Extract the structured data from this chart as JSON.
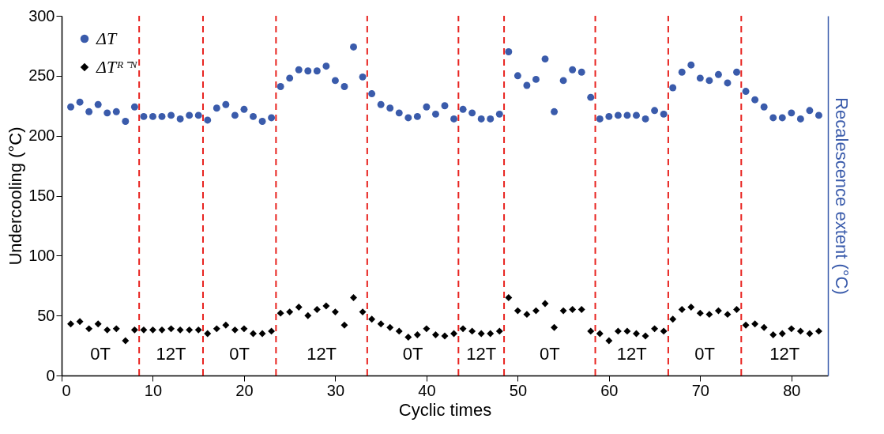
{
  "chart_data": {
    "type": "scatter",
    "xlabel": "Cyclic times",
    "ylabel": "Undercooling (°C)",
    "y2label": "Recalescence extent (°C)",
    "x": [
      1,
      2,
      3,
      4,
      5,
      6,
      7,
      8,
      9,
      10,
      11,
      12,
      13,
      14,
      15,
      16,
      17,
      18,
      19,
      20,
      21,
      22,
      23,
      24,
      25,
      26,
      27,
      28,
      29,
      30,
      31,
      32,
      33,
      34,
      35,
      36,
      37,
      38,
      39,
      40,
      41,
      42,
      43,
      44,
      45,
      46,
      47,
      48,
      49,
      50,
      51,
      52,
      53,
      54,
      55,
      56,
      57,
      58,
      59,
      60,
      61,
      62,
      63,
      64,
      65,
      66,
      67,
      68,
      69,
      70,
      71,
      72,
      73,
      74,
      75,
      76,
      77,
      78,
      79,
      80,
      81,
      82,
      83
    ],
    "series": [
      {
        "name": "ΔT",
        "color": "#3a5bab",
        "marker": "circle",
        "values": [
          224,
          228,
          220,
          226,
          219,
          220,
          212,
          224,
          216,
          216,
          216,
          217,
          214,
          217,
          217,
          213,
          223,
          226,
          217,
          222,
          216,
          212,
          215,
          241,
          248,
          255,
          254,
          254,
          258,
          246,
          241,
          274,
          249,
          235,
          226,
          223,
          219,
          215,
          216,
          224,
          218,
          225,
          214,
          222,
          219,
          214,
          214,
          218,
          270,
          250,
          242,
          247,
          264,
          220,
          246,
          255,
          253,
          232,
          214,
          216,
          217,
          217,
          217,
          214,
          221,
          218,
          240,
          253,
          259,
          248,
          246,
          251,
          244,
          253,
          237,
          230,
          224,
          215,
          215,
          219,
          214,
          221,
          217
        ]
      },
      {
        "name": "ΔTᴿ⁻ᴺ",
        "color": "#000000",
        "marker": "diamond",
        "values": [
          43,
          45,
          39,
          43,
          38,
          39,
          29,
          38,
          38,
          38,
          38,
          39,
          38,
          38,
          38,
          35,
          39,
          42,
          38,
          39,
          35,
          35,
          37,
          52,
          53,
          57,
          50,
          55,
          58,
          53,
          42,
          65,
          53,
          47,
          43,
          40,
          37,
          32,
          34,
          39,
          34,
          33,
          35,
          39,
          37,
          35,
          35,
          37,
          65,
          54,
          51,
          54,
          60,
          40,
          54,
          55,
          55,
          37,
          35,
          29,
          37,
          37,
          35,
          33,
          39,
          37,
          47,
          55,
          57,
          52,
          51,
          54,
          51,
          55,
          42,
          43,
          40,
          34,
          35,
          39,
          37,
          35,
          37
        ]
      }
    ],
    "xlim": [
      0,
      84
    ],
    "xticks": [
      0,
      10,
      20,
      30,
      40,
      50,
      60,
      70,
      80
    ],
    "ylim": [
      0,
      300
    ],
    "yticks": [
      0,
      50,
      100,
      150,
      200,
      250,
      300
    ],
    "ref_lines": [
      {
        "axis": "x",
        "value": 8.5,
        "color": "#e8231f",
        "line_style": "dashed"
      },
      {
        "axis": "x",
        "value": 15.5,
        "color": "#e8231f",
        "line_style": "dashed"
      },
      {
        "axis": "x",
        "value": 23.5,
        "color": "#e8231f",
        "line_style": "dashed"
      },
      {
        "axis": "x",
        "value": 33.5,
        "color": "#e8231f",
        "line_style": "dashed"
      },
      {
        "axis": "x",
        "value": 43.5,
        "color": "#e8231f",
        "line_style": "dashed"
      },
      {
        "axis": "x",
        "value": 48.5,
        "color": "#e8231f",
        "line_style": "dashed"
      },
      {
        "axis": "x",
        "value": 58.5,
        "color": "#e8231f",
        "line_style": "dashed"
      },
      {
        "axis": "x",
        "value": 66.5,
        "color": "#e8231f",
        "line_style": "dashed"
      },
      {
        "axis": "x",
        "value": 74.5,
        "color": "#e8231f",
        "line_style": "dashed"
      }
    ],
    "annotations": [
      "0T",
      "12T",
      "0T",
      "12T",
      "0T",
      "12T",
      "0T",
      "12T",
      "0T",
      "12T"
    ],
    "grid": false,
    "legend": "top left"
  }
}
